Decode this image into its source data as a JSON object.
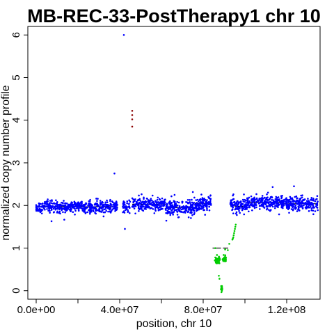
{
  "chart_data": {
    "type": "scatter",
    "title": "MB-REC-33-PostTherapy1 chr 10",
    "xlabel": "position, chr 10",
    "ylabel": "normalized copy number profile",
    "xlim": [
      -4000000,
      136000000
    ],
    "ylim": [
      -0.2,
      6.2
    ],
    "x_ticks": [
      0,
      20000000,
      40000000,
      60000000,
      80000000,
      100000000,
      120000000
    ],
    "x_tick_labels": [
      "0.0e+00",
      "",
      "4.0e+07",
      "",
      "8.0e+07",
      "",
      "1.2e+08"
    ],
    "y_ticks": [
      0,
      1,
      2,
      3,
      4,
      5,
      6
    ],
    "y_tick_labels": [
      "0",
      "1",
      "2",
      "3",
      "4",
      "5",
      "6"
    ],
    "grid": false,
    "legend": "none",
    "colors": {
      "normal": "#0000ff",
      "loss": "#00cc00",
      "gain": "#8b0000",
      "segment": "#000000"
    },
    "segments": [
      {
        "x0": 0,
        "x1": 39000000,
        "y": 1.97
      },
      {
        "x0": 41500000,
        "x1": 45000000,
        "y": 1.97
      },
      {
        "x0": 46000000,
        "x1": 62000000,
        "y": 2.03
      },
      {
        "x0": 62000000,
        "x1": 76000000,
        "y": 1.95
      },
      {
        "x0": 76000000,
        "x1": 84000000,
        "y": 2.05
      },
      {
        "x0": 84500000,
        "x1": 88500000,
        "y": 1.0
      },
      {
        "x0": 88500000,
        "x1": 89500000,
        "y": 0.05
      },
      {
        "x0": 89500000,
        "x1": 92000000,
        "y": 1.0
      },
      {
        "x0": 93000000,
        "x1": 95000000,
        "y": 2.0
      },
      {
        "x0": 95000000,
        "x1": 101000000,
        "y": 1.98
      },
      {
        "x0": 101000000,
        "x1": 118000000,
        "y": 2.07
      },
      {
        "x0": 118000000,
        "x1": 135000000,
        "y": 2.04
      }
    ],
    "regions": [
      {
        "x0": 0,
        "x1": 39000000,
        "mean": 1.97,
        "sd": 0.07,
        "density": 480,
        "class": "normal"
      },
      {
        "x0": 41500000,
        "x1": 45000000,
        "mean": 1.97,
        "sd": 0.1,
        "density": 40,
        "class": "normal"
      },
      {
        "x0": 46000000,
        "x1": 62000000,
        "mean": 2.03,
        "sd": 0.07,
        "density": 210,
        "class": "normal"
      },
      {
        "x0": 62000000,
        "x1": 76000000,
        "mean": 1.95,
        "sd": 0.09,
        "density": 190,
        "class": "normal"
      },
      {
        "x0": 76000000,
        "x1": 84000000,
        "mean": 2.05,
        "sd": 0.09,
        "density": 110,
        "class": "normal"
      },
      {
        "x0": 85500000,
        "x1": 88000000,
        "mean": 0.72,
        "sd": 0.05,
        "density": 45,
        "class": "loss"
      },
      {
        "x0": 88500000,
        "x1": 89200000,
        "mean": 0.05,
        "sd": 0.03,
        "density": 12,
        "class": "loss"
      },
      {
        "x0": 89300000,
        "x1": 91000000,
        "mean": 0.75,
        "sd": 0.05,
        "density": 30,
        "class": "loss"
      },
      {
        "x0": 93000000,
        "x1": 95000000,
        "mean": 2.02,
        "sd": 0.08,
        "density": 30,
        "class": "normal"
      },
      {
        "x0": 95000000,
        "x1": 101000000,
        "mean": 1.98,
        "sd": 0.08,
        "density": 80,
        "class": "normal"
      },
      {
        "x0": 101000000,
        "x1": 118000000,
        "mean": 2.07,
        "sd": 0.07,
        "density": 230,
        "class": "normal"
      },
      {
        "x0": 118000000,
        "x1": 135000000,
        "mean": 2.04,
        "sd": 0.08,
        "density": 230,
        "class": "normal"
      }
    ],
    "points": [
      {
        "x": 42000000,
        "y": 6.0,
        "class": "normal"
      },
      {
        "x": 37500000,
        "y": 2.75,
        "class": "normal"
      },
      {
        "x": 42500000,
        "y": 1.45,
        "class": "normal"
      },
      {
        "x": 46000000,
        "y": 4.22,
        "class": "gain"
      },
      {
        "x": 46000000,
        "y": 4.12,
        "class": "gain"
      },
      {
        "x": 46000000,
        "y": 4.02,
        "class": "gain"
      },
      {
        "x": 46000000,
        "y": 3.85,
        "class": "gain"
      },
      {
        "x": 87500000,
        "y": 0.35,
        "class": "loss"
      },
      {
        "x": 87800000,
        "y": 0.28,
        "class": "loss"
      },
      {
        "x": 92500000,
        "y": 1.1,
        "class": "loss"
      },
      {
        "x": 91800000,
        "y": 0.95,
        "class": "loss"
      },
      {
        "x": 94000000,
        "y": 1.2,
        "class": "loss"
      },
      {
        "x": 94200000,
        "y": 1.22,
        "class": "loss"
      },
      {
        "x": 94400000,
        "y": 1.25,
        "class": "loss"
      },
      {
        "x": 94600000,
        "y": 1.3,
        "class": "loss"
      },
      {
        "x": 94800000,
        "y": 1.35,
        "class": "loss"
      },
      {
        "x": 95000000,
        "y": 1.4,
        "class": "loss"
      },
      {
        "x": 95200000,
        "y": 1.45,
        "class": "loss"
      },
      {
        "x": 95400000,
        "y": 1.5,
        "class": "loss"
      },
      {
        "x": 95600000,
        "y": 1.55,
        "class": "loss"
      },
      {
        "x": 123500000,
        "y": 2.45,
        "class": "normal"
      }
    ]
  }
}
